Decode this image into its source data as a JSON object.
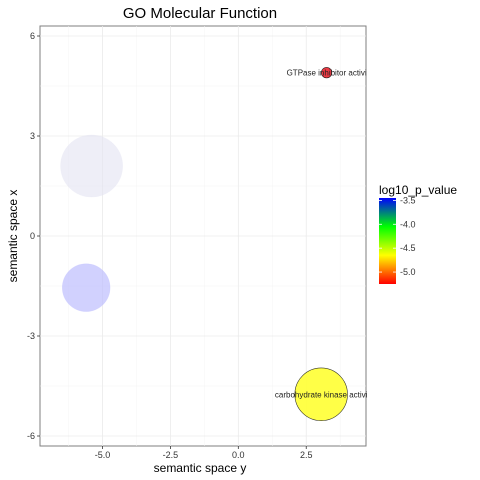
{
  "chart_data": {
    "type": "scatter",
    "title": "GO Molecular Function",
    "xlabel": "semantic space y",
    "ylabel": "semantic space x",
    "xlim": [
      -7.3,
      4.7
    ],
    "ylim": [
      -6.3,
      6.3
    ],
    "x_ticks": [
      -5.0,
      -2.5,
      0.0,
      2.5
    ],
    "x_tick_labels": [
      "-5.0",
      "-2.5",
      "0.0",
      "2.5"
    ],
    "y_ticks": [
      -6,
      -3,
      0,
      3,
      6
    ],
    "y_tick_labels": [
      "-6",
      "-3",
      "0",
      "3",
      "6"
    ],
    "grid": true,
    "points": [
      {
        "x": -5.4,
        "y": 2.1,
        "size": 1.0,
        "log10_p_value": -3.5,
        "label": "",
        "color": "#e3e3f2",
        "alpha": 0.6
      },
      {
        "x": -5.6,
        "y": -1.55,
        "size": 0.77,
        "log10_p_value": -3.45,
        "label": "",
        "color": "#bdbdfe",
        "alpha": 0.7
      },
      {
        "x": 3.25,
        "y": 4.9,
        "size": 0.17,
        "log10_p_value": -5.2,
        "label": "GTPase inhibitor activi",
        "color": "#ec2530",
        "alpha": 0.9
      },
      {
        "x": 3.05,
        "y": -4.75,
        "size": 0.85,
        "log10_p_value": -4.75,
        "label": "carbohydrate kinase activi",
        "color": "#ffff33",
        "alpha": 0.9
      }
    ],
    "legend": {
      "title": "log10_p_value",
      "placement": "right",
      "range": [
        -5.25,
        -3.45
      ],
      "ticks": [
        -3.5,
        -4.0,
        -4.5,
        -5.0
      ],
      "tick_labels": [
        "-3.5",
        "-4.0",
        "-4.5",
        "-5.0"
      ],
      "gradient_colors": [
        "#0000ff",
        "#00ff00",
        "#ffff00",
        "#ff0000"
      ]
    }
  }
}
